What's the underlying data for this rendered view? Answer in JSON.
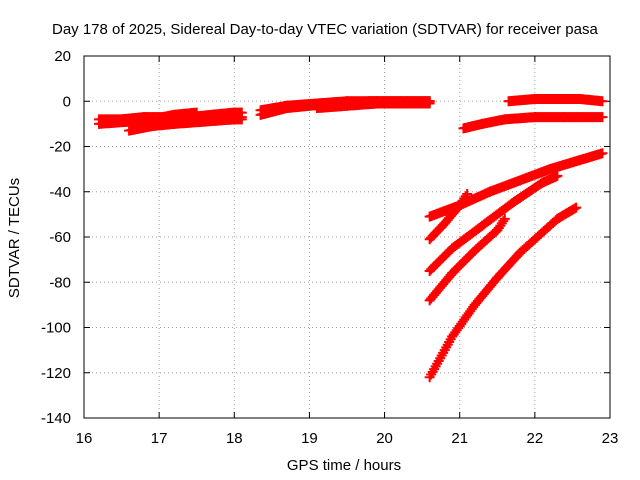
{
  "chart_data": {
    "type": "scatter",
    "title": "Day 178 of 2025, Sidereal Day-to-day VTEC variation (SDTVAR) for receiver pasa",
    "xlabel": "GPS time / hours",
    "ylabel": "SDTVAR / TECUs",
    "xlim": [
      16,
      23
    ],
    "ylim": [
      -140,
      20
    ],
    "xticks": [
      "16",
      "17",
      "18",
      "19",
      "20",
      "21",
      "22",
      "23"
    ],
    "yticks": [
      "20",
      "0",
      "-20",
      "-40",
      "-60",
      "-80",
      "-100",
      "-120",
      "-140"
    ],
    "grid": true,
    "legend": "none",
    "marker": "plus",
    "color": "#ff0000",
    "series": [
      {
        "x": [
          16.2,
          16.5,
          16.8,
          17.1,
          17.4,
          17.7,
          18.0,
          18.1
        ],
        "y": [
          -8,
          -8,
          -7,
          -7,
          -7,
          -6,
          -5,
          -5
        ]
      },
      {
        "x": [
          16.2,
          16.6,
          17.0,
          17.4,
          17.8,
          18.1
        ],
        "y": [
          -10,
          -9,
          -8,
          -7,
          -7,
          -7
        ]
      },
      {
        "x": [
          16.6,
          16.9,
          17.2,
          17.6,
          18.0,
          18.1
        ],
        "y": [
          -13,
          -11,
          -10,
          -9,
          -8,
          -8
        ]
      },
      {
        "x": [
          16.9,
          17.2,
          17.5
        ],
        "y": [
          -8,
          -6,
          -5
        ]
      },
      {
        "x": [
          18.35,
          18.7,
          19.0,
          19.4,
          19.8,
          20.2,
          20.6
        ],
        "y": [
          -6,
          -3,
          -2,
          -1,
          0,
          0,
          0
        ]
      },
      {
        "x": [
          18.35,
          18.7,
          19.1,
          19.5,
          19.9,
          20.3,
          20.6
        ],
        "y": [
          -4,
          -2,
          -1,
          0,
          0,
          0,
          0
        ]
      },
      {
        "x": [
          19.1,
          19.5,
          19.9,
          20.3,
          20.6
        ],
        "y": [
          -3,
          -2,
          -1,
          -1,
          -1
        ]
      },
      {
        "x": [
          21.05,
          21.3,
          21.6,
          22.0,
          22.4,
          22.9
        ],
        "y": [
          -12,
          -10,
          -8,
          -7,
          -7,
          -7
        ]
      },
      {
        "x": [
          21.65,
          22.0,
          22.3,
          22.6,
          22.9
        ],
        "y": [
          0,
          1,
          1,
          1,
          0
        ]
      },
      {
        "x": [
          20.6,
          21.0,
          21.4,
          21.8,
          22.2,
          22.6,
          22.9
        ],
        "y": [
          -51,
          -46,
          -40,
          -35,
          -30,
          -26,
          -23
        ]
      },
      {
        "x": [
          20.6,
          20.8,
          21.0,
          21.1
        ],
        "y": [
          -61,
          -54,
          -46,
          -41
        ]
      },
      {
        "x": [
          20.6,
          20.9,
          21.3,
          21.7,
          22.1,
          22.3
        ],
        "y": [
          -75,
          -65,
          -55,
          -45,
          -36,
          -33
        ]
      },
      {
        "x": [
          20.6,
          20.9,
          21.2,
          21.5,
          21.6
        ],
        "y": [
          -88,
          -76,
          -66,
          -57,
          -52
        ]
      },
      {
        "x": [
          20.6,
          20.9,
          21.2,
          21.5,
          21.8,
          22.1,
          22.3,
          22.55
        ],
        "y": [
          -122,
          -104,
          -90,
          -78,
          -67,
          -58,
          -52,
          -47
        ]
      }
    ]
  }
}
